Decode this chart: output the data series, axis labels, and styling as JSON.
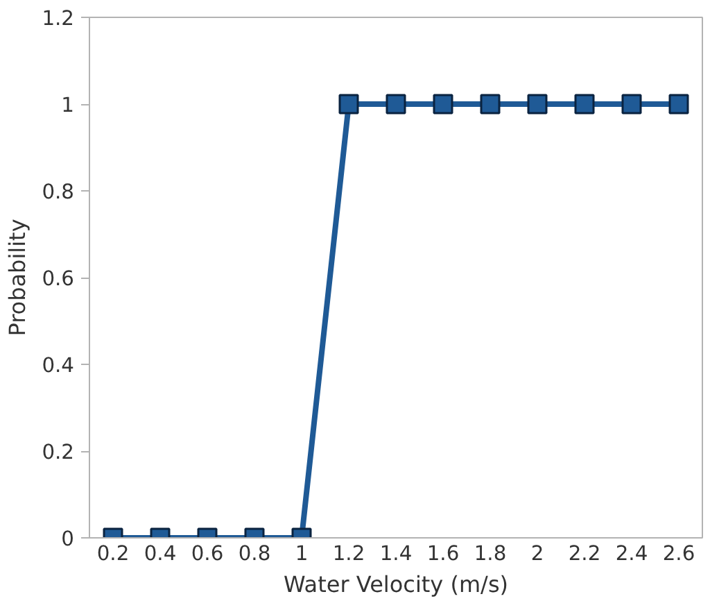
{
  "chart_data": {
    "type": "line",
    "xlabel": "Water Velocity (m/s)",
    "ylabel": "Probability",
    "categories": [
      "0.2",
      "0.4",
      "0.6",
      "0.8",
      "1",
      "1.2",
      "1.4",
      "1.6",
      "1.8",
      "2",
      "2.2",
      "2.4",
      "2.6"
    ],
    "series": [
      {
        "color": "#1f5a96",
        "values": [
          0,
          0,
          0,
          0,
          0,
          1,
          1,
          1,
          1,
          1,
          1,
          1,
          1
        ]
      }
    ],
    "ylim": [
      0,
      1.2
    ],
    "yticks": [
      0,
      0.2,
      0.4,
      0.6,
      0.8,
      1,
      1.2
    ],
    "marker": "square",
    "line_style": "solid"
  }
}
